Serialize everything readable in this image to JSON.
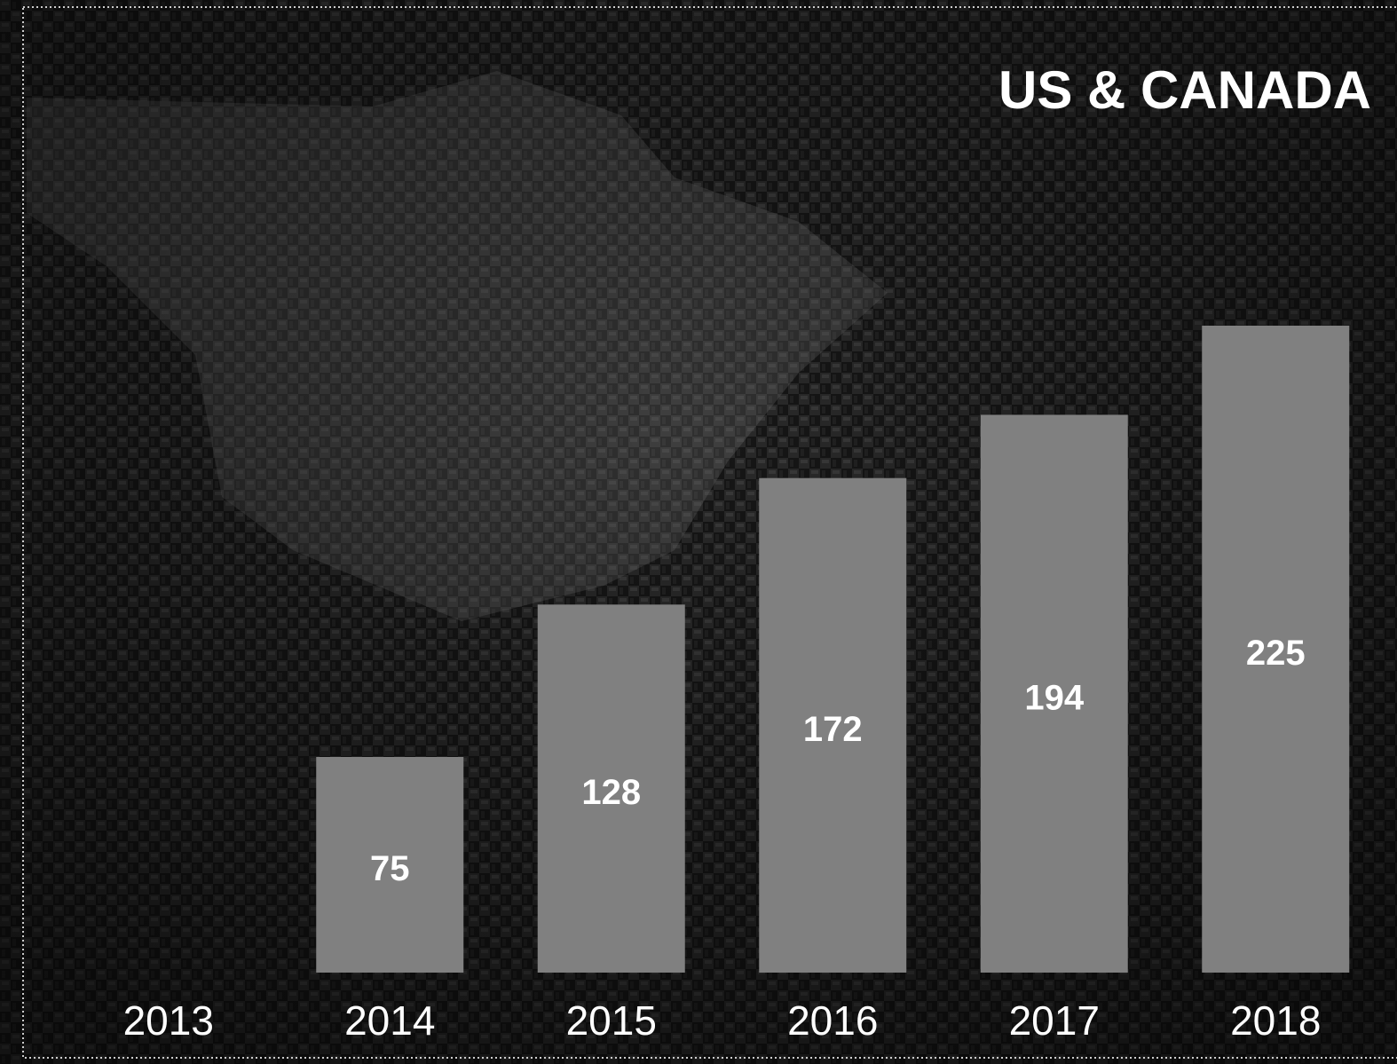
{
  "chart_data": {
    "type": "bar",
    "title": "US & CANADA",
    "categories": [
      "2013",
      "2014",
      "2015",
      "2016",
      "2017",
      "2018"
    ],
    "values": [
      null,
      75,
      128,
      172,
      194,
      225
    ],
    "color": "#808080",
    "ylim": [
      0,
      225
    ]
  }
}
